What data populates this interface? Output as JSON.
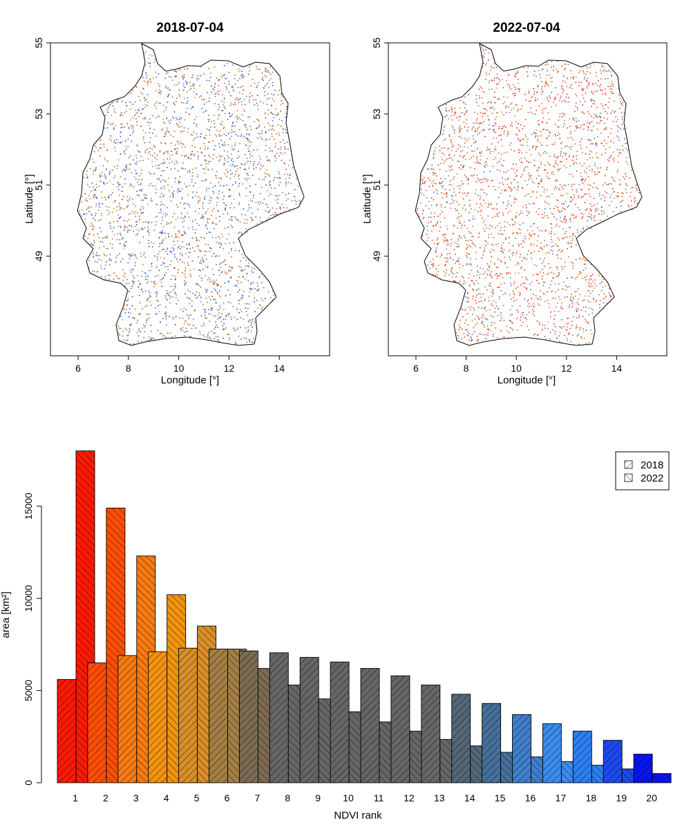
{
  "maps": [
    {
      "title": "2018-07-04",
      "xlabel": "Longitude [°]",
      "ylabel": "Latitude [°]",
      "xticks": [
        6,
        8,
        10,
        12,
        14
      ],
      "yticks": [
        49,
        51,
        53,
        55
      ],
      "xlim": [
        4.9,
        16.0
      ],
      "ylim": [
        46.2,
        55.0
      ]
    },
    {
      "title": "2022-07-04",
      "xlabel": "Longitude [°]",
      "ylabel": "Latitude [°]",
      "xticks": [
        6,
        8,
        10,
        12,
        14
      ],
      "yticks": [
        49,
        51,
        53,
        55
      ],
      "xlim": [
        4.9,
        16.0
      ],
      "ylim": [
        46.2,
        55.0
      ]
    }
  ],
  "chart_data": {
    "type": "bar",
    "xlabel": "NDVI rank",
    "ylabel": "area [km²]",
    "categories": [
      "1",
      "2",
      "3",
      "4",
      "5",
      "6",
      "7",
      "8",
      "9",
      "10",
      "11",
      "12",
      "13",
      "14",
      "15",
      "16",
      "17",
      "18",
      "19",
      "20"
    ],
    "series": [
      {
        "name": "2018",
        "values": [
          5600,
          6500,
          6900,
          7100,
          7300,
          7250,
          7150,
          7050,
          6800,
          6550,
          6200,
          5800,
          5300,
          4800,
          4300,
          3700,
          3200,
          2800,
          2300,
          1550
        ]
      },
      {
        "name": "2022",
        "values": [
          18000,
          14900,
          12300,
          10200,
          8500,
          7250,
          6200,
          5300,
          4550,
          3850,
          3300,
          2800,
          2350,
          2000,
          1650,
          1400,
          1150,
          950,
          750,
          500
        ]
      }
    ],
    "colors": [
      "#ff1a05",
      "#ff4e05",
      "#f77a13",
      "#f2940e",
      "#d88f28",
      "#a47e45",
      "#7d6a53",
      "#666666",
      "#666666",
      "#666666",
      "#666666",
      "#666666",
      "#666666",
      "#546677",
      "#46709a",
      "#3f7fcb",
      "#3b8ced",
      "#2c7ff0",
      "#1e49f0",
      "#0a14f2"
    ],
    "yticks": [
      0,
      5000,
      10000,
      15000
    ],
    "ylim": [
      0,
      18400
    ],
    "grid": false,
    "legend": {
      "position": "top-right",
      "entries": [
        "2018",
        "2022"
      ]
    }
  }
}
